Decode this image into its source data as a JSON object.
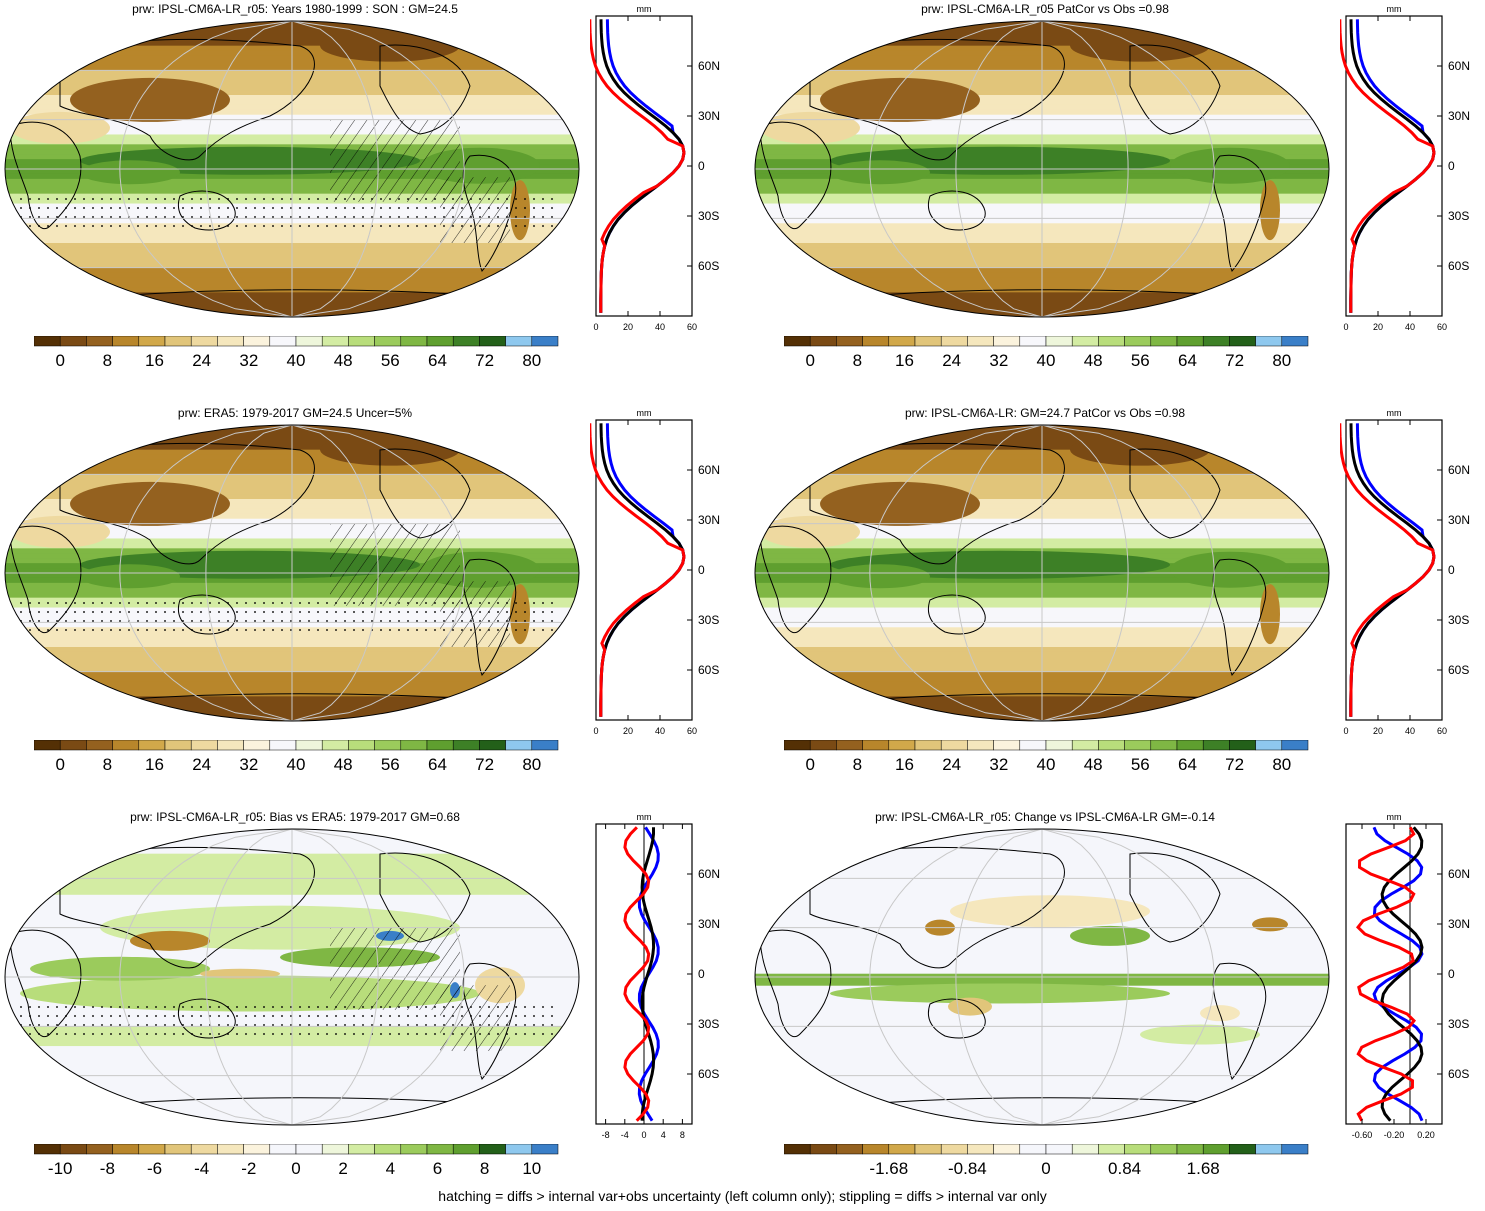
{
  "panels": [
    {
      "title": "prw: IPSL-CM6A-LR_r05: Years 1980-1999 : SON : GM=24.5",
      "kind": "abs",
      "hatch": true,
      "stipple": true,
      "profile_unit": "mm",
      "profile_lat_labels": [
        "60N",
        "30N",
        "0",
        "30S",
        "60S"
      ],
      "profile_x_labels": [
        "0",
        "20",
        "40",
        "60"
      ],
      "profile_xlim": [
        0,
        60
      ],
      "colorbar_labels": [
        "0",
        "8",
        "16",
        "24",
        "32",
        "40",
        "48",
        "56",
        "64",
        "72",
        "80"
      ]
    },
    {
      "title": "prw: IPSL-CM6A-LR_r05 PatCor vs Obs =0.98",
      "kind": "abs",
      "hatch": false,
      "stipple": false,
      "profile_unit": "mm",
      "profile_lat_labels": [
        "60N",
        "30N",
        "0",
        "30S",
        "60S"
      ],
      "profile_x_labels": [
        "0",
        "20",
        "40",
        "60"
      ],
      "profile_xlim": [
        0,
        60
      ],
      "colorbar_labels": [
        "0",
        "8",
        "16",
        "24",
        "32",
        "40",
        "48",
        "56",
        "64",
        "72",
        "80"
      ]
    },
    {
      "title": "prw: ERA5: 1979-2017 GM=24.5 Uncer=5%",
      "kind": "abs",
      "hatch": true,
      "stipple": true,
      "profile_unit": "mm",
      "profile_lat_labels": [
        "60N",
        "30N",
        "0",
        "30S",
        "60S"
      ],
      "profile_x_labels": [
        "0",
        "20",
        "40",
        "60"
      ],
      "profile_xlim": [
        0,
        60
      ],
      "colorbar_labels": [
        "0",
        "8",
        "16",
        "24",
        "32",
        "40",
        "48",
        "56",
        "64",
        "72",
        "80"
      ]
    },
    {
      "title": "prw: IPSL-CM6A-LR: GM=24.7 PatCor vs Obs =0.98",
      "kind": "abs",
      "hatch": false,
      "stipple": false,
      "profile_unit": "mm",
      "profile_lat_labels": [
        "60N",
        "30N",
        "0",
        "30S",
        "60S"
      ],
      "profile_x_labels": [
        "0",
        "20",
        "40",
        "60"
      ],
      "profile_xlim": [
        0,
        60
      ],
      "colorbar_labels": [
        "0",
        "8",
        "16",
        "24",
        "32",
        "40",
        "48",
        "56",
        "64",
        "72",
        "80"
      ]
    },
    {
      "title": "prw: IPSL-CM6A-LR_r05: Bias vs ERA5: 1979-2017  GM=0.68",
      "kind": "bias",
      "hatch": true,
      "stipple": true,
      "profile_unit": "mm",
      "profile_lat_labels": [
        "60N",
        "30N",
        "0",
        "30S",
        "60S"
      ],
      "profile_x_labels": [
        "-8",
        "-4",
        "0",
        "4",
        "8"
      ],
      "profile_xlim": [
        -10,
        10
      ],
      "colorbar_labels": [
        "-10",
        "-8",
        "-6",
        "-4",
        "-2",
        "0",
        "2",
        "4",
        "6",
        "8",
        "10"
      ]
    },
    {
      "title": "prw: IPSL-CM6A-LR_r05: Change vs IPSL-CM6A-LR GM=-0.14",
      "kind": "change",
      "hatch": false,
      "stipple": false,
      "profile_unit": "mm",
      "profile_lat_labels": [
        "60N",
        "30N",
        "0",
        "30S",
        "60S"
      ],
      "profile_x_labels": [
        "-0.60",
        "-0.20",
        "0.20"
      ],
      "profile_xlim": [
        -0.8,
        0.4
      ],
      "colorbar_labels": [
        "-1.68",
        "-0.84",
        "0",
        "0.84",
        "1.68"
      ]
    }
  ],
  "colors": {
    "abs_scale": [
      "#543005",
      "#7a4a14",
      "#94611f",
      "#b8862b",
      "#d1a84a",
      "#e1c57a",
      "#eed9a0",
      "#f5e7bd",
      "#fbf3dd",
      "#f7f7fb",
      "#eef6db",
      "#d3eca3",
      "#b8dd7b",
      "#9bcb5c",
      "#7fb744",
      "#5f9f2f",
      "#3d8026",
      "#236019",
      "#8ec8ee",
      "#3a7fc8"
    ],
    "bias_scale": [
      "#543005",
      "#7a4a14",
      "#94611f",
      "#b8862b",
      "#d1a84a",
      "#e1c57a",
      "#eed9a0",
      "#f5e7bd",
      "#fbf3dd",
      "#f5f6fb",
      "#f5f6fb",
      "#eef6db",
      "#d3eca3",
      "#b8dd7b",
      "#9bcb5c",
      "#7fb744",
      "#5f9f2f",
      "#236019",
      "#8ec8ee",
      "#3a7fc8"
    ],
    "profile_model": "#ff0000",
    "profile_obs": "#0000ff",
    "profile_ref": "#000000"
  },
  "footer": "hatching = diffs > internal var+obs uncertainty (left column only); stippling = diffs > internal var only"
}
